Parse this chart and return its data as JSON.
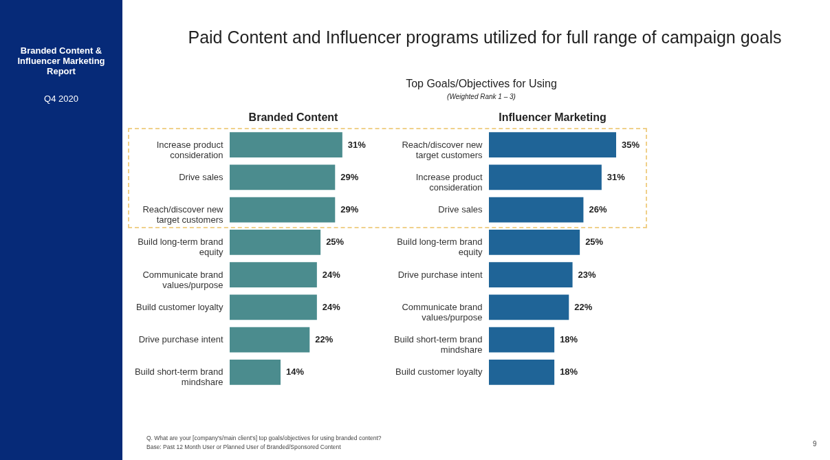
{
  "chart_data": [
    {
      "type": "bar",
      "orientation": "horizontal",
      "title": "Branded Content",
      "categories": [
        "Increase product consideration",
        "Drive sales",
        "Reach/discover new target customers",
        "Build long-term brand equity",
        "Communicate brand values/purpose",
        "Build customer loyalty",
        "Drive purchase intent",
        "Build short-term brand mindshare"
      ],
      "values": [
        31,
        29,
        29,
        25,
        24,
        24,
        22,
        14
      ],
      "value_labels": [
        "31%",
        "29%",
        "29%",
        "25%",
        "24%",
        "24%",
        "22%",
        "14%"
      ],
      "color": "#4b8c8e",
      "annotations": [
        "Paid Content and Influencer programs utilized for full range of campaign goals",
        "Top Goals/Objectives for Using",
        "(Weighted Rank 1 – 3)",
        "Branded Content & Influencer Marketing Report",
        "Q4 2020",
        "Q. What are your [company's/main client's] top goals/objectives for using branded content?",
        "Base: Past 12 Month User or Planned User of Branded/Sponsored Content",
        "9"
      ]
    },
    {
      "type": "bar",
      "orientation": "horizontal",
      "title": "Influencer Marketing",
      "categories": [
        "Reach/discover new target customers",
        "Increase product consideration",
        "Drive sales",
        "Build long-term brand equity",
        "Drive purchase intent",
        "Communicate brand values/purpose",
        "Build short-term brand mindshare",
        "Build customer loyalty"
      ],
      "values": [
        35,
        31,
        26,
        25,
        23,
        22,
        18,
        18
      ],
      "value_labels": [
        "35%",
        "31%",
        "26%",
        "25%",
        "23%",
        "22%",
        "18%",
        "18%"
      ],
      "color": "#1f6497"
    }
  ]
}
